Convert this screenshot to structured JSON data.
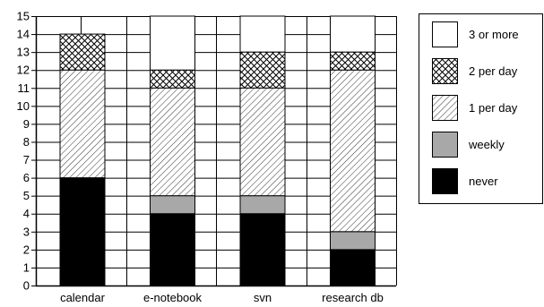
{
  "chart_data": {
    "type": "bar",
    "stacked": true,
    "categories": [
      "calendar",
      "e-notebook",
      "svn",
      "research db"
    ],
    "series": [
      {
        "name": "never",
        "values": [
          6,
          4,
          4,
          2
        ],
        "pattern": "solid-black"
      },
      {
        "name": "weekly",
        "values": [
          0,
          1,
          1,
          1
        ],
        "pattern": "solid-gray"
      },
      {
        "name": "1 per day",
        "values": [
          6,
          6,
          6,
          9
        ],
        "pattern": "diagonal-hatch"
      },
      {
        "name": "2 per day",
        "values": [
          2,
          1,
          2,
          1
        ],
        "pattern": "crosshatch"
      },
      {
        "name": "3 or more",
        "values": [
          0,
          3,
          2,
          2
        ],
        "pattern": "white"
      }
    ],
    "title": "",
    "xlabel": "",
    "ylabel": "",
    "ylim": [
      0,
      15
    ],
    "yticks": [
      "0",
      "1",
      "2",
      "3",
      "4",
      "5",
      "6",
      "7",
      "8",
      "9",
      "10",
      "11",
      "12",
      "13",
      "14",
      "15"
    ],
    "grid": true,
    "legend": {
      "position": "right",
      "order": [
        "3 or more",
        "2 per day",
        "1 per day",
        "weekly",
        "never"
      ]
    },
    "colors": {
      "black": "#000000",
      "gray": "#a8a8a8",
      "white": "#ffffff"
    }
  }
}
